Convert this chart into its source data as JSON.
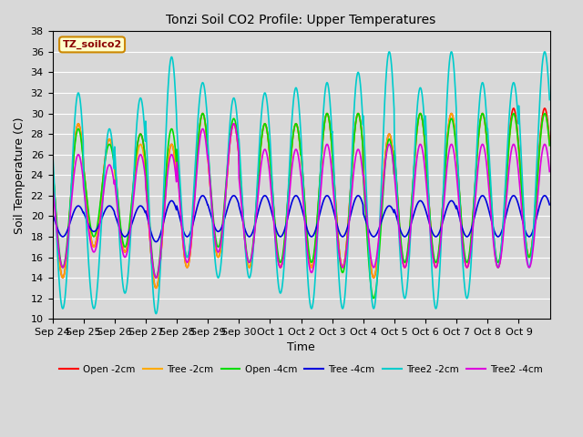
{
  "title": "Tonzi Soil CO2 Profile: Upper Temperatures",
  "xlabel": "Time",
  "ylabel": "Soil Temperature (C)",
  "ylim": [
    10,
    38
  ],
  "yticks": [
    10,
    12,
    14,
    16,
    18,
    20,
    22,
    24,
    26,
    28,
    30,
    32,
    34,
    36,
    38
  ],
  "background_color": "#d8d8d8",
  "plot_bg_color": "#d8d8d8",
  "annotation_text": "TZ_soilco2",
  "annotation_color": "#8b0000",
  "annotation_bg": "#ffffcc",
  "series_order": [
    "Open -2cm",
    "Tree -2cm",
    "Open -4cm",
    "Tree -4cm",
    "Tree2 -2cm",
    "Tree2 -4cm"
  ],
  "series": {
    "Open -2cm": {
      "color": "#ff0000",
      "lw": 1.2
    },
    "Tree -2cm": {
      "color": "#ffaa00",
      "lw": 1.2
    },
    "Open -4cm": {
      "color": "#00dd00",
      "lw": 1.2
    },
    "Tree -4cm": {
      "color": "#0000dd",
      "lw": 1.2
    },
    "Tree2 -2cm": {
      "color": "#00cccc",
      "lw": 1.2
    },
    "Tree2 -4cm": {
      "color": "#dd00dd",
      "lw": 1.2
    }
  },
  "x_tick_labels": [
    "Sep 24",
    "Sep 25",
    "Sep 26",
    "Sep 27",
    "Sep 28",
    "Sep 29",
    "Sep 30",
    "Oct 1",
    "Oct 2",
    "Oct 3",
    "Oct 4",
    "Oct 5",
    "Oct 6",
    "Oct 7",
    "Oct 8",
    "Oct 9"
  ],
  "num_days": 16,
  "points_per_day": 96,
  "cycles_per_day": 1,
  "series_params": {
    "Open -2cm": {
      "peaks": [
        29,
        27.5,
        28,
        27,
        30,
        29,
        29,
        29,
        30,
        30,
        28,
        30,
        30,
        30,
        30.5,
        30.5
      ],
      "troughs": [
        14,
        17,
        16.5,
        13,
        15,
        16,
        15,
        15,
        15,
        15,
        14,
        15,
        15,
        15,
        15,
        16
      ]
    },
    "Tree -2cm": {
      "peaks": [
        29,
        27.5,
        27,
        27,
        30,
        29,
        29,
        29,
        30,
        30,
        28,
        30,
        30,
        30,
        30,
        30
      ],
      "troughs": [
        14,
        17,
        16.5,
        13,
        15,
        16,
        15,
        15,
        15,
        15,
        14,
        15,
        15,
        15,
        15,
        16
      ]
    },
    "Open -4cm": {
      "peaks": [
        28.5,
        27,
        28,
        28.5,
        30,
        29.5,
        29,
        29,
        30,
        30,
        27.5,
        30,
        29.5,
        30,
        30,
        30
      ],
      "troughs": [
        15,
        18,
        17,
        14,
        16,
        17,
        15.5,
        15.5,
        15.5,
        14.5,
        12,
        15.5,
        15.5,
        15.5,
        15.5,
        16
      ]
    },
    "Tree -4cm": {
      "peaks": [
        21,
        21,
        21,
        21.5,
        22,
        22,
        22,
        22,
        22,
        22,
        21,
        21.5,
        21.5,
        22,
        22,
        22
      ],
      "troughs": [
        18,
        18.5,
        18,
        17.5,
        18,
        18.5,
        18,
        18,
        18,
        18,
        18,
        18,
        18,
        18,
        18,
        18
      ]
    },
    "Tree2 -2cm": {
      "peaks": [
        32,
        28.5,
        31.5,
        35.5,
        33,
        31.5,
        32,
        32.5,
        33,
        34,
        36,
        32.5,
        36,
        33,
        33,
        36
      ],
      "troughs": [
        11,
        11,
        12.5,
        10.5,
        16,
        14,
        14,
        12.5,
        11,
        11,
        11,
        12,
        11,
        12,
        15,
        15
      ]
    },
    "Tree2 -4cm": {
      "peaks": [
        26,
        25,
        26,
        26,
        28.5,
        29,
        26.5,
        26.5,
        27,
        26.5,
        27,
        27,
        27,
        27,
        27,
        27
      ],
      "troughs": [
        15,
        16.5,
        16,
        14,
        15.5,
        16.5,
        15.5,
        15,
        14.5,
        15,
        15,
        15,
        15,
        15,
        15,
        15
      ]
    }
  }
}
